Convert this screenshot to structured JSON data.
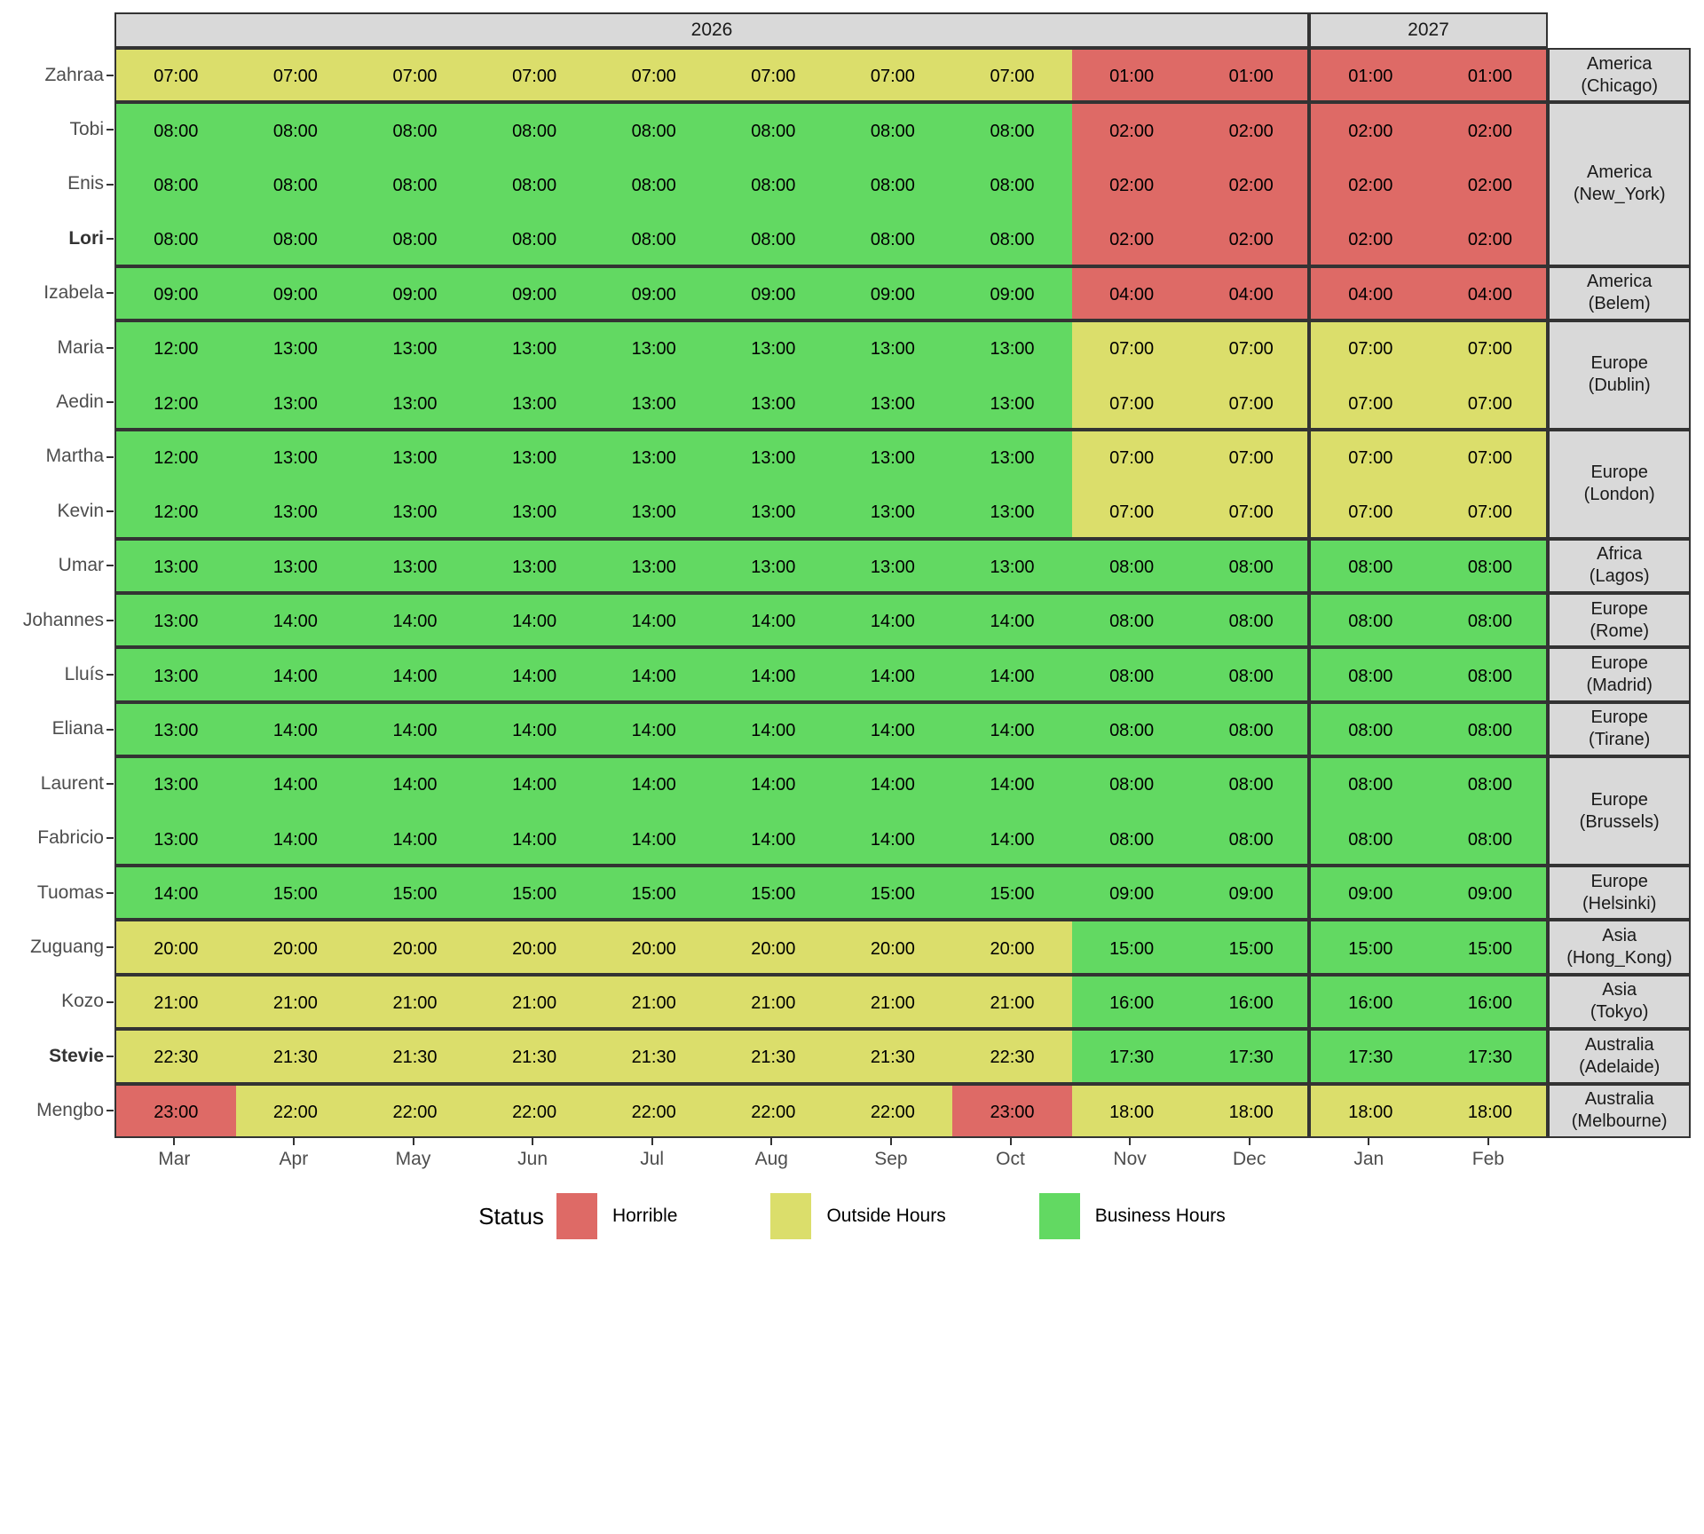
{
  "chart_data": {
    "type": "heatmap",
    "axis": {
      "months": [
        "Mar",
        "Apr",
        "May",
        "Jun",
        "Jul",
        "Aug",
        "Sep",
        "Oct",
        "Nov",
        "Dec",
        "Jan",
        "Feb"
      ],
      "years": [
        {
          "label": "2026",
          "columns": 10
        },
        {
          "label": "2027",
          "columns": 2
        }
      ]
    },
    "colors": {
      "H": "#DE6A66",
      "O": "#DBDE6B",
      "B": "#62D962",
      "panel_header_bg": "#D9D9D9",
      "strip_bg": "#D9D9D9",
      "border": "#333333",
      "axis_text": "#4d4d4d"
    },
    "legend": {
      "title": "Status",
      "items": [
        {
          "label": "Horrible",
          "status": "H",
          "color": "#DE6A66"
        },
        {
          "label": "Outside Hours",
          "status": "O",
          "color": "#DBDE6B"
        },
        {
          "label": "Business Hours",
          "status": "B",
          "color": "#62D962"
        }
      ]
    },
    "groups": [
      {
        "region": "America",
        "city": "(Chicago)",
        "rows": [
          {
            "name": "Zahraa",
            "bold": false,
            "times": [
              "07:00",
              "07:00",
              "07:00",
              "07:00",
              "07:00",
              "07:00",
              "07:00",
              "07:00",
              "01:00",
              "01:00",
              "01:00",
              "01:00"
            ],
            "status": [
              "O",
              "O",
              "O",
              "O",
              "O",
              "O",
              "O",
              "O",
              "H",
              "H",
              "H",
              "H"
            ]
          }
        ]
      },
      {
        "region": "America",
        "city": "(New_York)",
        "rows": [
          {
            "name": "Tobi",
            "bold": false,
            "times": [
              "08:00",
              "08:00",
              "08:00",
              "08:00",
              "08:00",
              "08:00",
              "08:00",
              "08:00",
              "02:00",
              "02:00",
              "02:00",
              "02:00"
            ],
            "status": [
              "B",
              "B",
              "B",
              "B",
              "B",
              "B",
              "B",
              "B",
              "H",
              "H",
              "H",
              "H"
            ]
          },
          {
            "name": "Enis",
            "bold": false,
            "times": [
              "08:00",
              "08:00",
              "08:00",
              "08:00",
              "08:00",
              "08:00",
              "08:00",
              "08:00",
              "02:00",
              "02:00",
              "02:00",
              "02:00"
            ],
            "status": [
              "B",
              "B",
              "B",
              "B",
              "B",
              "B",
              "B",
              "B",
              "H",
              "H",
              "H",
              "H"
            ]
          },
          {
            "name": "Lori",
            "bold": true,
            "times": [
              "08:00",
              "08:00",
              "08:00",
              "08:00",
              "08:00",
              "08:00",
              "08:00",
              "08:00",
              "02:00",
              "02:00",
              "02:00",
              "02:00"
            ],
            "status": [
              "B",
              "B",
              "B",
              "B",
              "B",
              "B",
              "B",
              "B",
              "H",
              "H",
              "H",
              "H"
            ]
          }
        ]
      },
      {
        "region": "America",
        "city": "(Belem)",
        "rows": [
          {
            "name": "Izabela",
            "bold": false,
            "times": [
              "09:00",
              "09:00",
              "09:00",
              "09:00",
              "09:00",
              "09:00",
              "09:00",
              "09:00",
              "04:00",
              "04:00",
              "04:00",
              "04:00"
            ],
            "status": [
              "B",
              "B",
              "B",
              "B",
              "B",
              "B",
              "B",
              "B",
              "H",
              "H",
              "H",
              "H"
            ]
          }
        ]
      },
      {
        "region": "Europe",
        "city": "(Dublin)",
        "rows": [
          {
            "name": "Maria",
            "bold": false,
            "times": [
              "12:00",
              "13:00",
              "13:00",
              "13:00",
              "13:00",
              "13:00",
              "13:00",
              "13:00",
              "07:00",
              "07:00",
              "07:00",
              "07:00"
            ],
            "status": [
              "B",
              "B",
              "B",
              "B",
              "B",
              "B",
              "B",
              "B",
              "O",
              "O",
              "O",
              "O"
            ]
          },
          {
            "name": "Aedin",
            "bold": false,
            "times": [
              "12:00",
              "13:00",
              "13:00",
              "13:00",
              "13:00",
              "13:00",
              "13:00",
              "13:00",
              "07:00",
              "07:00",
              "07:00",
              "07:00"
            ],
            "status": [
              "B",
              "B",
              "B",
              "B",
              "B",
              "B",
              "B",
              "B",
              "O",
              "O",
              "O",
              "O"
            ]
          }
        ]
      },
      {
        "region": "Europe",
        "city": "(London)",
        "rows": [
          {
            "name": "Martha",
            "bold": false,
            "times": [
              "12:00",
              "13:00",
              "13:00",
              "13:00",
              "13:00",
              "13:00",
              "13:00",
              "13:00",
              "07:00",
              "07:00",
              "07:00",
              "07:00"
            ],
            "status": [
              "B",
              "B",
              "B",
              "B",
              "B",
              "B",
              "B",
              "B",
              "O",
              "O",
              "O",
              "O"
            ]
          },
          {
            "name": "Kevin",
            "bold": false,
            "times": [
              "12:00",
              "13:00",
              "13:00",
              "13:00",
              "13:00",
              "13:00",
              "13:00",
              "13:00",
              "07:00",
              "07:00",
              "07:00",
              "07:00"
            ],
            "status": [
              "B",
              "B",
              "B",
              "B",
              "B",
              "B",
              "B",
              "B",
              "O",
              "O",
              "O",
              "O"
            ]
          }
        ]
      },
      {
        "region": "Africa",
        "city": "(Lagos)",
        "rows": [
          {
            "name": "Umar",
            "bold": false,
            "times": [
              "13:00",
              "13:00",
              "13:00",
              "13:00",
              "13:00",
              "13:00",
              "13:00",
              "13:00",
              "08:00",
              "08:00",
              "08:00",
              "08:00"
            ],
            "status": [
              "B",
              "B",
              "B",
              "B",
              "B",
              "B",
              "B",
              "B",
              "B",
              "B",
              "B",
              "B"
            ]
          }
        ]
      },
      {
        "region": "Europe",
        "city": "(Rome)",
        "rows": [
          {
            "name": "Johannes",
            "bold": false,
            "times": [
              "13:00",
              "14:00",
              "14:00",
              "14:00",
              "14:00",
              "14:00",
              "14:00",
              "14:00",
              "08:00",
              "08:00",
              "08:00",
              "08:00"
            ],
            "status": [
              "B",
              "B",
              "B",
              "B",
              "B",
              "B",
              "B",
              "B",
              "B",
              "B",
              "B",
              "B"
            ]
          }
        ]
      },
      {
        "region": "Europe",
        "city": "(Madrid)",
        "rows": [
          {
            "name": "Lluís",
            "bold": false,
            "times": [
              "13:00",
              "14:00",
              "14:00",
              "14:00",
              "14:00",
              "14:00",
              "14:00",
              "14:00",
              "08:00",
              "08:00",
              "08:00",
              "08:00"
            ],
            "status": [
              "B",
              "B",
              "B",
              "B",
              "B",
              "B",
              "B",
              "B",
              "B",
              "B",
              "B",
              "B"
            ]
          }
        ]
      },
      {
        "region": "Europe",
        "city": "(Tirane)",
        "rows": [
          {
            "name": "Eliana",
            "bold": false,
            "times": [
              "13:00",
              "14:00",
              "14:00",
              "14:00",
              "14:00",
              "14:00",
              "14:00",
              "14:00",
              "08:00",
              "08:00",
              "08:00",
              "08:00"
            ],
            "status": [
              "B",
              "B",
              "B",
              "B",
              "B",
              "B",
              "B",
              "B",
              "B",
              "B",
              "B",
              "B"
            ]
          }
        ]
      },
      {
        "region": "Europe",
        "city": "(Brussels)",
        "rows": [
          {
            "name": "Laurent",
            "bold": false,
            "times": [
              "13:00",
              "14:00",
              "14:00",
              "14:00",
              "14:00",
              "14:00",
              "14:00",
              "14:00",
              "08:00",
              "08:00",
              "08:00",
              "08:00"
            ],
            "status": [
              "B",
              "B",
              "B",
              "B",
              "B",
              "B",
              "B",
              "B",
              "B",
              "B",
              "B",
              "B"
            ]
          },
          {
            "name": "Fabricio",
            "bold": false,
            "times": [
              "13:00",
              "14:00",
              "14:00",
              "14:00",
              "14:00",
              "14:00",
              "14:00",
              "14:00",
              "08:00",
              "08:00",
              "08:00",
              "08:00"
            ],
            "status": [
              "B",
              "B",
              "B",
              "B",
              "B",
              "B",
              "B",
              "B",
              "B",
              "B",
              "B",
              "B"
            ]
          }
        ]
      },
      {
        "region": "Europe",
        "city": "(Helsinki)",
        "rows": [
          {
            "name": "Tuomas",
            "bold": false,
            "times": [
              "14:00",
              "15:00",
              "15:00",
              "15:00",
              "15:00",
              "15:00",
              "15:00",
              "15:00",
              "09:00",
              "09:00",
              "09:00",
              "09:00"
            ],
            "status": [
              "B",
              "B",
              "B",
              "B",
              "B",
              "B",
              "B",
              "B",
              "B",
              "B",
              "B",
              "B"
            ]
          }
        ]
      },
      {
        "region": "Asia",
        "city": "(Hong_Kong)",
        "rows": [
          {
            "name": "Zuguang",
            "bold": false,
            "times": [
              "20:00",
              "20:00",
              "20:00",
              "20:00",
              "20:00",
              "20:00",
              "20:00",
              "20:00",
              "15:00",
              "15:00",
              "15:00",
              "15:00"
            ],
            "status": [
              "O",
              "O",
              "O",
              "O",
              "O",
              "O",
              "O",
              "O",
              "B",
              "B",
              "B",
              "B"
            ]
          }
        ]
      },
      {
        "region": "Asia",
        "city": "(Tokyo)",
        "rows": [
          {
            "name": "Kozo",
            "bold": false,
            "times": [
              "21:00",
              "21:00",
              "21:00",
              "21:00",
              "21:00",
              "21:00",
              "21:00",
              "21:00",
              "16:00",
              "16:00",
              "16:00",
              "16:00"
            ],
            "status": [
              "O",
              "O",
              "O",
              "O",
              "O",
              "O",
              "O",
              "O",
              "B",
              "B",
              "B",
              "B"
            ]
          }
        ]
      },
      {
        "region": "Australia",
        "city": "(Adelaide)",
        "rows": [
          {
            "name": "Stevie",
            "bold": true,
            "times": [
              "22:30",
              "21:30",
              "21:30",
              "21:30",
              "21:30",
              "21:30",
              "21:30",
              "22:30",
              "17:30",
              "17:30",
              "17:30",
              "17:30"
            ],
            "status": [
              "O",
              "O",
              "O",
              "O",
              "O",
              "O",
              "O",
              "O",
              "B",
              "B",
              "B",
              "B"
            ]
          }
        ]
      },
      {
        "region": "Australia",
        "city": "(Melbourne)",
        "rows": [
          {
            "name": "Mengbo",
            "bold": false,
            "times": [
              "23:00",
              "22:00",
              "22:00",
              "22:00",
              "22:00",
              "22:00",
              "22:00",
              "23:00",
              "18:00",
              "18:00",
              "18:00",
              "18:00"
            ],
            "status": [
              "H",
              "O",
              "O",
              "O",
              "O",
              "O",
              "O",
              "H",
              "O",
              "O",
              "O",
              "O"
            ]
          }
        ]
      }
    ]
  }
}
